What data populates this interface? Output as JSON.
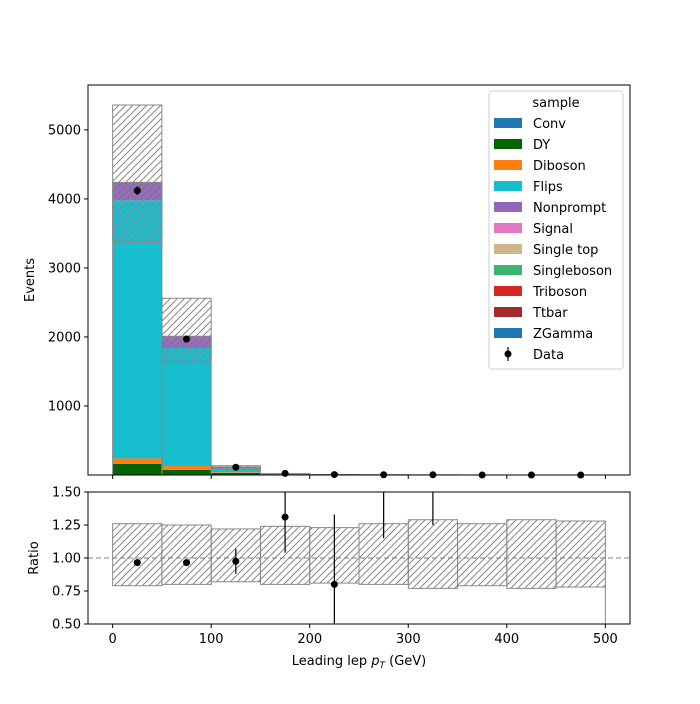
{
  "chart_data": {
    "type": "bar",
    "subtype": "stacked-histogram-with-ratio",
    "x_label_main": "Leading lep ",
    "x_label_sub": "p",
    "x_label_subscript": "T",
    "x_label_unit": " (GeV)",
    "ylabel_top": "Events",
    "ylabel_bottom": "Ratio",
    "xlim": [
      -25,
      525
    ],
    "ylim_top": [
      0,
      5650
    ],
    "ylim_bottom": [
      0.5,
      1.5
    ],
    "x_ticks": [
      0,
      100,
      200,
      300,
      400,
      500
    ],
    "y_ticks_top": [
      1000,
      2000,
      3000,
      4000,
      5000
    ],
    "y_ticks_bottom": [
      0.5,
      0.75,
      1.0,
      1.25,
      1.5
    ],
    "y_tick_labels_bottom": [
      "0.50",
      "0.75",
      "1.00",
      "1.25",
      "1.50"
    ],
    "bin_edges": [
      0,
      50,
      100,
      150,
      200,
      250,
      300,
      350,
      400,
      450,
      500
    ],
    "legend_title": "sample",
    "legend_position": "top-right",
    "series": [
      {
        "name": "Conv",
        "color": "#1f77b4",
        "values": [
          0,
          0,
          0,
          0,
          0,
          0,
          0,
          0,
          0,
          0
        ]
      },
      {
        "name": "DY",
        "color": "#006400",
        "values": [
          160,
          75,
          30,
          5,
          2,
          1,
          0,
          0,
          0,
          0
        ]
      },
      {
        "name": "Diboson",
        "color": "#ff7f0e",
        "values": [
          80,
          55,
          10,
          2,
          1,
          0,
          0,
          0,
          0,
          0
        ]
      },
      {
        "name": "Flips",
        "color": "#17becf",
        "values": [
          3740,
          1710,
          60,
          8,
          3,
          1,
          1,
          0,
          0,
          0
        ]
      },
      {
        "name": "Nonprompt",
        "color": "#9467bd",
        "values": [
          260,
          170,
          15,
          3,
          1,
          1,
          0,
          0,
          0,
          0
        ]
      },
      {
        "name": "Signal",
        "color": "#e377c2",
        "values": [
          0,
          0,
          0,
          0,
          0,
          0,
          0,
          0,
          0,
          0
        ]
      },
      {
        "name": "Single top",
        "color": "#d2b48c",
        "values": [
          0,
          0,
          0,
          0,
          0,
          0,
          0,
          0,
          0,
          0
        ]
      },
      {
        "name": "Singleboson",
        "color": "#3cb371",
        "values": [
          0,
          0,
          0,
          0,
          0,
          0,
          0,
          0,
          0,
          0
        ]
      },
      {
        "name": "Triboson",
        "color": "#d62728",
        "values": [
          0,
          0,
          0,
          0,
          0,
          0,
          0,
          0,
          0,
          0
        ]
      },
      {
        "name": "Ttbar",
        "color": "#a52a2a",
        "values": [
          0,
          0,
          0,
          0,
          0,
          0,
          0,
          0,
          0,
          0
        ]
      },
      {
        "name": "ZGamma",
        "color": "#1f77b4",
        "values": [
          0,
          0,
          0,
          0,
          0,
          0,
          0,
          0,
          0,
          0
        ]
      }
    ],
    "uncertainty_band": {
      "lower": [
        3370,
        1640,
        95,
        15,
        6,
        2,
        1,
        0.5,
        0.3,
        0.2
      ],
      "upper": [
        5360,
        2560,
        135,
        20,
        8,
        3,
        1.5,
        0.8,
        0.5,
        0.3
      ]
    },
    "data": {
      "name": "Data",
      "values": [
        4120,
        1970,
        112,
        24,
        6,
        4,
        3,
        0,
        0,
        0
      ],
      "errors": [
        64,
        44,
        11,
        5,
        2.5,
        2,
        1.7,
        0,
        0,
        0
      ]
    },
    "ratio": {
      "values": [
        0.965,
        0.965,
        0.975,
        1.31,
        0.8,
        1.85,
        1.85,
        null,
        null,
        null
      ],
      "errors": [
        0.015,
        0.022,
        0.095,
        0.27,
        0.53,
        0.7,
        0.6,
        null,
        null,
        null
      ],
      "band_lower": [
        0.79,
        0.8,
        0.82,
        0.8,
        0.81,
        0.8,
        0.77,
        0.79,
        0.77,
        0.78
      ],
      "band_upper": [
        1.26,
        1.25,
        1.22,
        1.24,
        1.23,
        1.26,
        1.29,
        1.26,
        1.29,
        1.28
      ],
      "reference_line": 1.0
    }
  }
}
